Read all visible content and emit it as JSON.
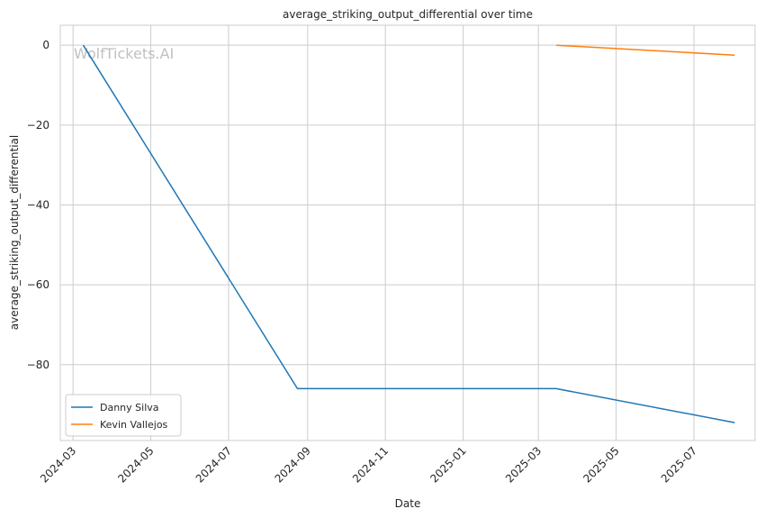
{
  "chart_data": {
    "type": "line",
    "title": "average_striking_output_differential over time",
    "xlabel": "Date",
    "ylabel": "average_striking_output_differential",
    "watermark": "WolfTickets.AI",
    "x_ticks": [
      "2024-03",
      "2024-05",
      "2024-07",
      "2024-09",
      "2024-11",
      "2025-01",
      "2025-03",
      "2025-05",
      "2025-07"
    ],
    "y_ticks": [
      0,
      -20,
      -40,
      -60,
      -80
    ],
    "xlim": [
      "2024-02-20",
      "2025-08-18"
    ],
    "ylim": [
      -99,
      5
    ],
    "grid": true,
    "legend_position": "lower-left",
    "series": [
      {
        "name": "Danny Silva",
        "color": "#1f77b4",
        "points": [
          {
            "x": "2024-03-09",
            "y": 0
          },
          {
            "x": "2024-08-24",
            "y": -86
          },
          {
            "x": "2025-03-15",
            "y": -86
          },
          {
            "x": "2025-08-02",
            "y": -94.5
          }
        ]
      },
      {
        "name": "Kevin Vallejos",
        "color": "#ff7f0e",
        "points": [
          {
            "x": "2025-03-15",
            "y": 0
          },
          {
            "x": "2025-08-02",
            "y": -2.5
          }
        ]
      }
    ]
  }
}
